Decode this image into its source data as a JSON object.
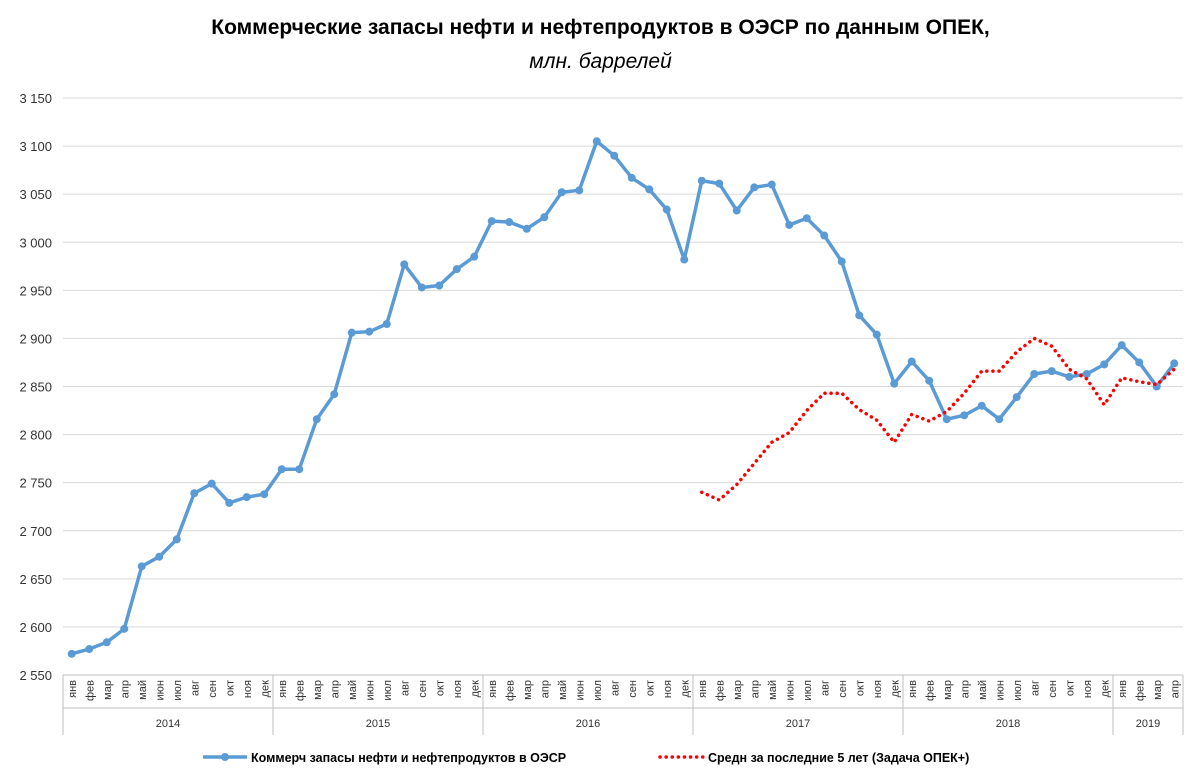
{
  "chart_data": {
    "type": "line",
    "title": "Коммерческие запасы нефти и нефтепродуктов в ОЭСР по данным ОПЕК,",
    "subtitle": "млн. баррелей",
    "ylim": [
      2550,
      3150
    ],
    "yticks": [
      "2 550",
      "2 600",
      "2 650",
      "2 700",
      "2 750",
      "2 800",
      "2 850",
      "2 900",
      "2 950",
      "3 000",
      "3 050",
      "3 100",
      "3 150"
    ],
    "ytick_values": [
      2550,
      2600,
      2650,
      2700,
      2750,
      2800,
      2850,
      2900,
      2950,
      3000,
      3050,
      3100,
      3150
    ],
    "grid": true,
    "legend_placement": "bottom",
    "years": [
      {
        "label": "2014",
        "months": 12
      },
      {
        "label": "2015",
        "months": 12
      },
      {
        "label": "2016",
        "months": 12
      },
      {
        "label": "2017",
        "months": 12
      },
      {
        "label": "2018",
        "months": 12
      },
      {
        "label": "2019",
        "months": 4
      }
    ],
    "month_labels": [
      "янв",
      "фев",
      "мар",
      "апр",
      "май",
      "июн",
      "июл",
      "авг",
      "сен",
      "окт",
      "ноя",
      "дек"
    ],
    "series": [
      {
        "name": "Коммерч запасы нефти и нефтепродуктов в ОЭСР",
        "color": "#5B9BD5",
        "style": "solid-markers",
        "start_index": 0,
        "values": [
          2572,
          2577,
          2584,
          2598,
          2663,
          2673,
          2691,
          2739,
          2749,
          2729,
          2735,
          2738,
          2764,
          2764,
          2816,
          2842,
          2906,
          2907,
          2915,
          2977,
          2953,
          2955,
          2972,
          2985,
          3022,
          3021,
          3014,
          3026,
          3052,
          3054,
          3105,
          3090,
          3067,
          3055,
          3034,
          2982,
          3064,
          3061,
          3033,
          3057,
          3060,
          3018,
          3025,
          3007,
          2980,
          2924,
          2904,
          2853,
          2876,
          2856,
          2816,
          2820,
          2830,
          2816,
          2839,
          2863,
          2866,
          2860,
          2863,
          2873,
          2893,
          2875,
          2850,
          2874
        ]
      },
      {
        "name": "Средн за последние 5 лет (Задача ОПЕК+)",
        "color": "#FF0000",
        "style": "dotted",
        "start_index": 36,
        "values": [
          2740,
          2732,
          2748,
          2770,
          2792,
          2802,
          2825,
          2843,
          2843,
          2826,
          2815,
          2792,
          2821,
          2814,
          2824,
          2843,
          2866,
          2866,
          2886,
          2900,
          2892,
          2868,
          2858,
          2831,
          2859,
          2855,
          2852,
          2868
        ]
      }
    ]
  }
}
